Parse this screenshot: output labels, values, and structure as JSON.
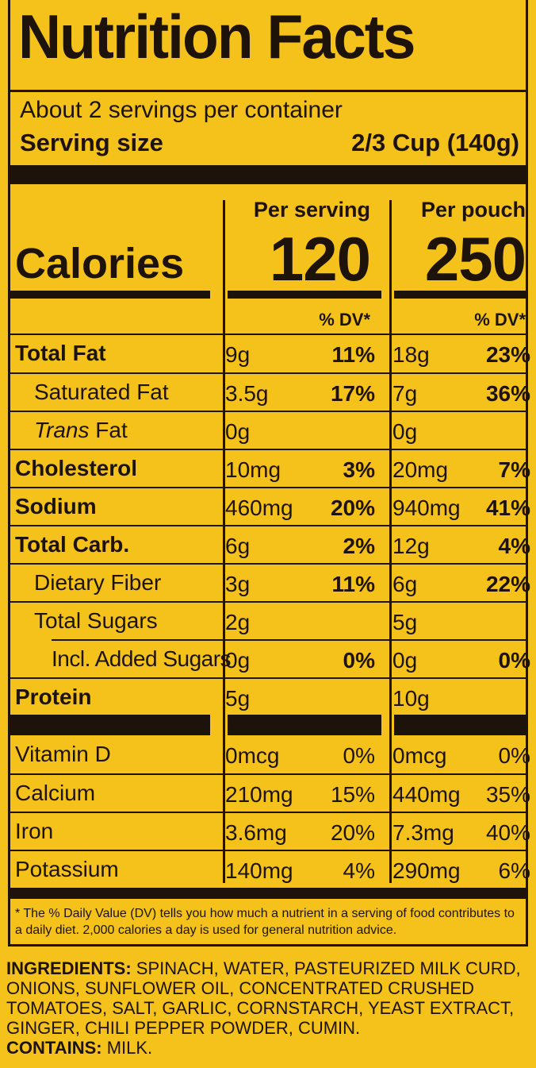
{
  "title": "Nutrition Facts",
  "servings_per_container": "About 2 servings per container",
  "serving_size_label": "Serving size",
  "serving_size_value": "2/3 Cup (140g)",
  "col1_header": "Per serving",
  "col2_header": "Per pouch",
  "calories_label": "Calories",
  "calories_serving": "120",
  "calories_pouch": "250",
  "dv_label": "% DV*",
  "nutrients": [
    {
      "name": "Total Fat",
      "amt1": "9g",
      "pct1": "11%",
      "amt2": "18g",
      "pct2": "23%"
    },
    {
      "name": "Saturated Fat",
      "amt1": "3.5g",
      "pct1": "17%",
      "amt2": "7g",
      "pct2": "36%"
    },
    {
      "name_italic": "Trans",
      "name_rest": " Fat",
      "amt1": "0g",
      "pct1": "",
      "amt2": "0g",
      "pct2": ""
    },
    {
      "name": "Cholesterol",
      "amt1": "10mg",
      "pct1": "3%",
      "amt2": "20mg",
      "pct2": "7%"
    },
    {
      "name": "Sodium",
      "amt1": "460mg",
      "pct1": "20%",
      "amt2": "940mg",
      "pct2": "41%"
    },
    {
      "name": "Total Carb.",
      "amt1": "6g",
      "pct1": "2%",
      "amt2": "12g",
      "pct2": "4%"
    },
    {
      "name": "Dietary Fiber",
      "amt1": "3g",
      "pct1": "11%",
      "amt2": "6g",
      "pct2": "22%"
    },
    {
      "name": "Total Sugars",
      "amt1": "2g",
      "pct1": "",
      "amt2": "5g",
      "pct2": ""
    },
    {
      "name": "Incl. Added Sugars",
      "amt1": "0g",
      "pct1": "0%",
      "amt2": "0g",
      "pct2": "0%"
    },
    {
      "name": "Protein",
      "amt1": "5g",
      "pct1": "",
      "amt2": "10g",
      "pct2": ""
    }
  ],
  "vitamins": [
    {
      "name": "Vitamin D",
      "amt1": "0mcg",
      "pct1": "0%",
      "amt2": "0mcg",
      "pct2": "0%"
    },
    {
      "name": "Calcium",
      "amt1": "210mg",
      "pct1": "15%",
      "amt2": "440mg",
      "pct2": "35%"
    },
    {
      "name": "Iron",
      "amt1": "3.6mg",
      "pct1": "20%",
      "amt2": "7.3mg",
      "pct2": "40%"
    },
    {
      "name": "Potassium",
      "amt1": "140mg",
      "pct1": "4%",
      "amt2": "290mg",
      "pct2": "6%"
    }
  ],
  "footnote": "* The % Daily Value (DV) tells you how much a nutrient in a serving of food contributes to a daily diet. 2,000 calories a day is used for general nutrition advice.",
  "ingredients_label": "INGREDIENTS:",
  "ingredients_text": " SPINACH, WATER, PASTEURIZED MILK CURD, ONIONS, SUNFLOWER OIL, CONCENTRATED CRUSHED TOMATOES, SALT, GARLIC, CORNSTARCH, YEAST EXTRACT, GINGER, CHILI PEPPER POWDER, CUMIN.",
  "contains_label": "CONTAINS:",
  "contains_text": " MILK.",
  "colors": {
    "background": "#f4c21a",
    "ink": "#1e130b"
  }
}
